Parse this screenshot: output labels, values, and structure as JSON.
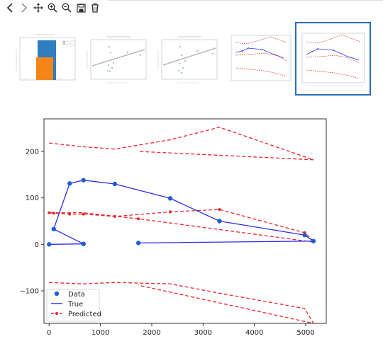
{
  "toolbar": {
    "icons": [
      "back-icon",
      "forward-icon",
      "pan-icon",
      "zoom-in-icon",
      "zoom-out-icon",
      "save-icon",
      "delete-icon"
    ]
  },
  "thumbnails": {
    "selected_index": 4,
    "items": [
      "thumbnail-1",
      "thumbnail-2",
      "thumbnail-3",
      "thumbnail-4",
      "thumbnail-5"
    ]
  },
  "colors": {
    "data_points": "#1f5fd6",
    "true_line": "#2b2be8",
    "predicted_line": "#e8262a",
    "selection": "#2a6ebb"
  },
  "chart_data": {
    "type": "line",
    "xlim": [
      -100,
      5400
    ],
    "ylim": [
      -170,
      270
    ],
    "xticks": [
      "0",
      "1000",
      "2000",
      "3000",
      "4000",
      "5000"
    ],
    "yticks": [
      "−100",
      "0",
      "100",
      "200"
    ],
    "legend": {
      "placement": "lower-left",
      "entries": [
        "Data",
        "True",
        "Predicted"
      ]
    },
    "series": [
      {
        "name": "Data",
        "style": "points",
        "x": [
          0,
          90,
          400,
          670,
          1280,
          2360,
          3320,
          4980,
          5150,
          670,
          1740
        ],
        "y": [
          0,
          33,
          131,
          138,
          130,
          99,
          50,
          20,
          7,
          1,
          3
        ]
      },
      {
        "name": "True",
        "style": "line",
        "x": [
          0,
          670,
          90,
          400,
          670,
          1280,
          2360,
          3320,
          4980,
          5150,
          1740
        ],
        "y": [
          0,
          1,
          33,
          131,
          138,
          130,
          99,
          50,
          20,
          7,
          3
        ]
      },
      {
        "name": "Predicted",
        "style": "dashed",
        "paths": [
          {
            "x": [
              5150,
              4980,
              3320,
              2360,
              1280,
              670,
              400,
              90,
              0,
              670,
              1740,
              5150
            ],
            "y": [
              7,
              25,
              75,
              70,
              60,
              65,
              65,
              67,
              68,
              68,
              55,
              5
            ]
          },
          {
            "x": [
              0,
              670,
              1280,
              2360,
              3320,
              5150,
              1740
            ],
            "y": [
              218,
              210,
              205,
              225,
              252,
              182,
              200
            ]
          },
          {
            "x": [
              0,
              670,
              1280,
              2360,
              3320,
              4980,
              5150,
              1740
            ],
            "y": [
              -82,
              -85,
              -82,
              -85,
              -105,
              -138,
              -170,
              -88
            ]
          }
        ],
        "markers_x": [
          0,
          90,
          400,
          670,
          1280,
          2360,
          3320,
          4980,
          5150,
          1740
        ],
        "markers_y": [
          68,
          67,
          65,
          65,
          60,
          70,
          75,
          25,
          7,
          55
        ]
      }
    ]
  }
}
